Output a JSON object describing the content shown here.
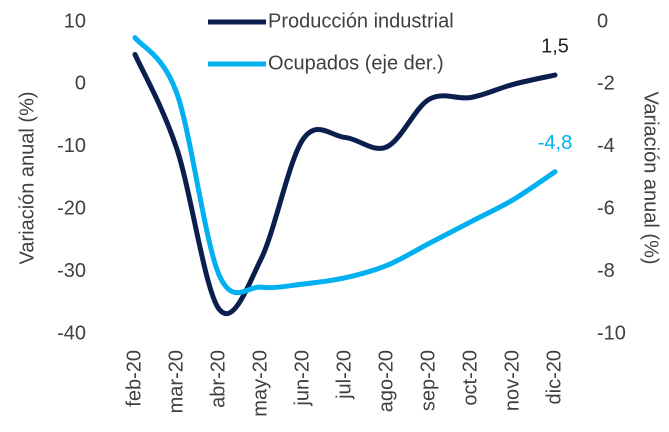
{
  "chart_data": {
    "type": "line",
    "categories": [
      "feb-20",
      "mar-20",
      "abr-20",
      "may-20",
      "jun-20",
      "jul-20",
      "ago-20",
      "sep-20",
      "oct-20",
      "nov-20",
      "dic-20"
    ],
    "series": [
      {
        "name": "Producción industrial",
        "color": "#0b1f4f",
        "values": [
          4.8,
          -10.4,
          -36,
          -28,
          -8.8,
          -8.5,
          -10,
          -2.4,
          -2.1,
          0,
          1.5
        ],
        "value_labels": [
          null,
          null,
          null,
          null,
          null,
          null,
          null,
          null,
          null,
          null,
          "1,5"
        ]
      },
      {
        "name": "Ocupados (eje der.)",
        "color": "#00b0f0",
        "axis": "y2",
        "values": [
          -0.5,
          -2.3,
          -8.1,
          -8.5,
          -8.4,
          -8.2,
          -7.8,
          -7.1,
          -6.4,
          -5.7,
          -4.8
        ],
        "value_labels": [
          null,
          null,
          null,
          null,
          null,
          null,
          null,
          null,
          null,
          null,
          "-4,8"
        ]
      }
    ],
    "ylabel": "Variación anual (%)",
    "y2label": "Variación anual (%)",
    "ylim": [
      -40,
      10
    ],
    "yticks": [
      10,
      0,
      -10,
      -20,
      -30,
      -40
    ],
    "y2lim": [
      -10,
      0
    ],
    "y2ticks": [
      0,
      -2,
      -4,
      -6,
      -8,
      -10
    ],
    "legend": "top",
    "grid": false
  }
}
